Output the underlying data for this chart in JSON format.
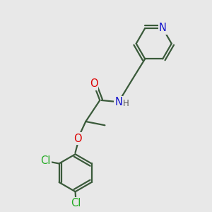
{
  "background_color": "#e8e8e8",
  "bond_color": "#3a5a3a",
  "bond_width": 1.6,
  "atom_colors": {
    "O": "#dd0000",
    "N": "#1010cc",
    "Cl": "#22aa22",
    "H": "#555555"
  },
  "font_size": 10.5,
  "font_size_h": 8.5,
  "figsize": [
    3.0,
    3.0
  ],
  "dpi": 100,
  "xlim": [
    0,
    10
  ],
  "ylim": [
    0,
    10
  ]
}
